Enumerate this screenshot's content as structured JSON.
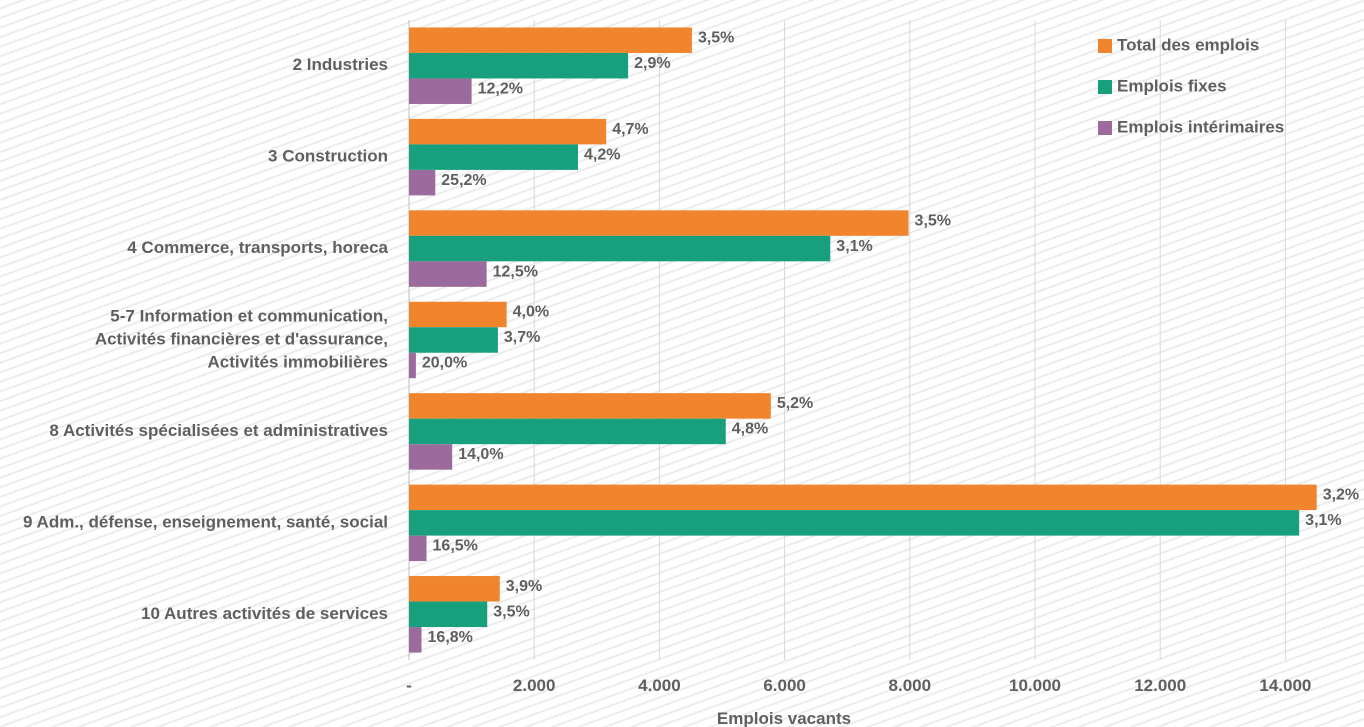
{
  "chart_data": {
    "type": "bar",
    "orientation": "horizontal",
    "categories": [
      [
        "2 Industries"
      ],
      [
        "3 Construction"
      ],
      [
        "4 Commerce, transports, horeca"
      ],
      [
        "5-7 Information et communication,",
        "Activités financières et d'assurance,",
        "Activités immobilières"
      ],
      [
        "8 Activités spécialisées et administratives"
      ],
      [
        "9 Adm., défense, enseignement, santé, social"
      ],
      [
        "10 Autres activités de services"
      ]
    ],
    "series": [
      {
        "name": "Total des emplois",
        "color": "#f0852d",
        "values": [
          4520,
          3150,
          7980,
          1560,
          5780,
          14500,
          1450
        ],
        "labels": [
          "3,5%",
          "4,7%",
          "3,5%",
          "4,0%",
          "5,2%",
          "3,2%",
          "3,9%"
        ]
      },
      {
        "name": "Emplois fixes",
        "color": "#18a07e",
        "values": [
          3500,
          2700,
          6730,
          1420,
          5060,
          14220,
          1250
        ],
        "labels": [
          "2,9%",
          "4,2%",
          "3,1%",
          "3,7%",
          "4,8%",
          "3,1%",
          "3,5%"
        ]
      },
      {
        "name": "Emplois intérimaires",
        "color": "#9b6b9e",
        "values": [
          1000,
          420,
          1240,
          110,
          690,
          280,
          200
        ],
        "labels": [
          "12,2%",
          "25,2%",
          "12,5%",
          "20,0%",
          "14,0%",
          "16,5%",
          "16,8%"
        ]
      }
    ],
    "xlabel": "Emplois vacants",
    "xlim": [
      0,
      15000
    ],
    "xticks": [
      0,
      2000,
      4000,
      6000,
      8000,
      10000,
      12000,
      14000
    ],
    "xtick_labels": [
      "-",
      "2.000",
      "4.000",
      "6.000",
      "8.000",
      "10.000",
      "12.000",
      "14.000"
    ],
    "grid": true,
    "legend_position": "top-right"
  }
}
